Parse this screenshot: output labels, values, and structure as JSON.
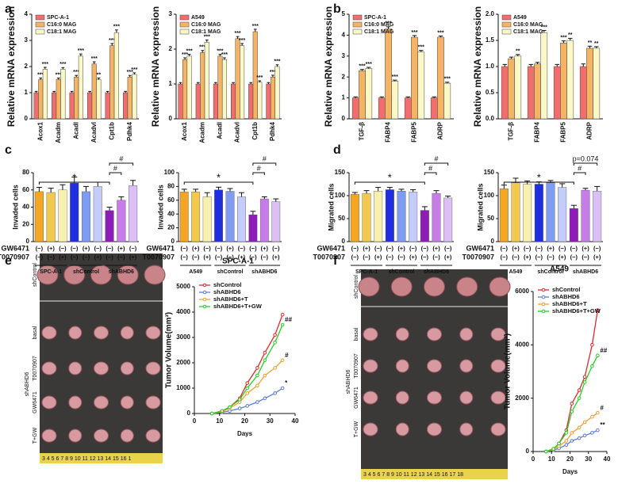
{
  "panels": [
    "a",
    "b",
    "c",
    "d",
    "e",
    "f"
  ],
  "photos": [
    {
      "labels": [
        "shControl",
        "shABHD6",
        "basal",
        "T0070907",
        "GW6471",
        "T+GW"
      ],
      "ruler": "3 4 5 6 7 8 9 10 11 12 13 14 15 16 1"
    },
    {
      "labels": [
        "shControl",
        "shABHD6",
        "basal",
        "T0070907",
        "GW6471",
        "T+GW"
      ],
      "ruler": "3 4 5 6 7 8 9 10 11 12 13 14 15 16 17 18"
    }
  ],
  "chart_data": [
    {
      "type": "bar",
      "ylabel": "Relative mRNA expression",
      "categories": [
        "Acox1",
        "Acadm",
        "Acadl",
        "Acadvl",
        "Cpt1b",
        "Pdhk4"
      ],
      "ylim": [
        0,
        4
      ],
      "yticks": [
        0,
        1,
        2,
        3,
        4
      ],
      "series": [
        {
          "name": "SPC-A-1",
          "color": "#f26d6d",
          "values": [
            1,
            1,
            1,
            1,
            1,
            1
          ],
          "errors": [
            0.05,
            0.05,
            0.05,
            0.05,
            0.05,
            0.05
          ]
        },
        {
          "name": "C16:0 MAG",
          "color": "#f5b366",
          "values": [
            1.5,
            1.5,
            1.6,
            2.1,
            2.8,
            1.6
          ],
          "errors": [
            0.06,
            0.06,
            0.06,
            0.08,
            0.08,
            0.06
          ],
          "labels": [
            "***",
            "***",
            "***",
            "***",
            "***",
            "***"
          ]
        },
        {
          "name": "C18:1 MAG",
          "color": "#fbf8c8",
          "values": [
            1.9,
            1.9,
            2.4,
            1.5,
            3.3,
            1.7
          ],
          "errors": [
            0.07,
            0.06,
            0.08,
            0.06,
            0.1,
            0.06
          ],
          "labels": [
            "***",
            "***",
            "***",
            "**",
            "***",
            "***"
          ]
        }
      ]
    },
    {
      "type": "bar",
      "ylabel": "Relative mRNA expression",
      "categories": [
        "Acox1",
        "Acadm",
        "Acadl",
        "Acadvl",
        "Cpt1b",
        "Pdhk4"
      ],
      "ylim": [
        0,
        3
      ],
      "yticks": [
        0,
        1,
        2,
        3
      ],
      "series": [
        {
          "name": "A549",
          "color": "#f26d6d",
          "values": [
            1,
            1,
            1,
            1,
            1,
            1
          ],
          "errors": [
            0.04,
            0.04,
            0.04,
            0.04,
            0.04,
            0.04
          ]
        },
        {
          "name": "C16:0 MAG",
          "color": "#f5b366",
          "values": [
            1.7,
            1.9,
            1.8,
            2.3,
            2.5,
            1.2
          ],
          "errors": [
            0.05,
            0.06,
            0.05,
            0.06,
            0.07,
            0.05
          ],
          "labels": [
            "***",
            "***",
            "***",
            "***",
            "***",
            "***"
          ]
        },
        {
          "name": "C18:1 MAG",
          "color": "#fbf8c8",
          "values": [
            1.8,
            2.2,
            1.7,
            2.1,
            1.05,
            1.5
          ],
          "errors": [
            0.05,
            0.06,
            0.05,
            0.06,
            0.04,
            0.05
          ],
          "labels": [
            "***",
            "***",
            "***",
            "***",
            "***",
            "***"
          ]
        }
      ]
    },
    {
      "type": "bar",
      "ylabel": "Relative mRNA expression",
      "categories": [
        "TGF-β",
        "FABP4",
        "FABP5",
        "ADRP"
      ],
      "ylim": [
        0,
        5
      ],
      "yticks": [
        0,
        1,
        2,
        3,
        4,
        5
      ],
      "series": [
        {
          "name": "SPC-A-1",
          "color": "#f26d6d",
          "values": [
            1,
            1,
            1,
            1
          ],
          "errors": [
            0.05,
            0.05,
            0.05,
            0.05
          ]
        },
        {
          "name": "C16:0 MAG",
          "color": "#f5b366",
          "values": [
            2.3,
            4.3,
            3.9,
            3.9
          ],
          "errors": [
            0.06,
            0.1,
            0.08,
            0.06
          ],
          "labels": [
            "***",
            "***",
            "***",
            "***"
          ]
        },
        {
          "name": "C18:1 MAG",
          "color": "#fbf8c8",
          "values": [
            2.4,
            1.8,
            3.2,
            1.7
          ],
          "errors": [
            0.06,
            0.05,
            0.07,
            0.05
          ],
          "labels": [
            "***",
            "***",
            "***",
            "***"
          ]
        }
      ]
    },
    {
      "type": "bar",
      "ylabel": "Relative mRNA expression",
      "categories": [
        "TGF-β",
        "FABP4",
        "FABP5",
        "ADRP"
      ],
      "ylim": [
        0,
        2
      ],
      "yticks": [
        {
          "value": 0,
          "label": "0.0"
        },
        {
          "value": 0.5,
          "label": "0.5"
        },
        {
          "value": 1,
          "label": "1.0"
        },
        {
          "value": 1.5,
          "label": "1.5"
        },
        {
          "value": 2,
          "label": "2.0"
        }
      ],
      "series": [
        {
          "name": "A549",
          "color": "#f26d6d",
          "values": [
            1,
            1,
            1,
            1
          ],
          "errors": [
            0.04,
            0.04,
            0.04,
            0.05
          ]
        },
        {
          "name": "C16:0 MAG",
          "color": "#f5b366",
          "values": [
            1.15,
            1.05,
            1.45,
            1.35
          ],
          "errors": [
            0.03,
            0.03,
            0.04,
            0.04
          ],
          "labels": [
            null,
            null,
            "***",
            "**"
          ]
        },
        {
          "name": "C18:1 MAG",
          "color": "#fbf8c8",
          "values": [
            1.2,
            1.65,
            1.5,
            1.35
          ],
          "errors": [
            0.03,
            0.04,
            0.04,
            0.03
          ],
          "labels": [
            "**",
            "***",
            "**",
            "**"
          ]
        }
      ]
    },
    {
      "type": "bar",
      "ylabel": "Invaded cells",
      "ylim": [
        0,
        80
      ],
      "yticks": [
        0,
        20,
        40,
        60,
        80
      ],
      "values": [
        58,
        57,
        60,
        68,
        58,
        64,
        36,
        48,
        65
      ],
      "errors": [
        5,
        5,
        6,
        7,
        6,
        5,
        4,
        4,
        6
      ],
      "colors": [
        "#f5a623",
        "#f2c94c",
        "#f8f0b0",
        "#1f2fe0",
        "#7f9cf5",
        "#c4cdfa",
        "#8e1cb8",
        "#c77ce8",
        "#dcc0f5"
      ],
      "rows": [
        {
          "name": "GW6471",
          "values": [
            "(−)",
            "(+)",
            "(−)",
            "(−)",
            "(+)",
            "(−)",
            "(−)",
            "(+)",
            "(−)"
          ]
        },
        {
          "name": "T0070907",
          "values": [
            "(−)",
            "(−)",
            "(+)",
            "(−)",
            "(−)",
            "(+)",
            "(−)",
            "(−)",
            "(+)"
          ]
        }
      ],
      "groups": [
        "SPC-A-1",
        "shControl",
        "shABHD6"
      ],
      "brackets": [
        "*",
        "#",
        "#"
      ]
    },
    {
      "type": "bar",
      "ylabel": "Invaded cells",
      "ylim": [
        0,
        100
      ],
      "yticks": [
        0,
        20,
        40,
        60,
        80,
        100
      ],
      "values": [
        72,
        72,
        65,
        75,
        73,
        65,
        39,
        62,
        58
      ],
      "errors": [
        4,
        4,
        6,
        4,
        4,
        6,
        5,
        3,
        4
      ],
      "colors": [
        "#f5a623",
        "#f2c94c",
        "#f8f0b0",
        "#1f2fe0",
        "#7f9cf5",
        "#c4cdfa",
        "#8e1cb8",
        "#c77ce8",
        "#dcc0f5"
      ],
      "rows": [
        {
          "name": "GW6471",
          "values": [
            "(−)",
            "(+)",
            "(−)",
            "(−)",
            "(+)",
            "(−)",
            "(−)",
            "(+)",
            "(−)"
          ]
        },
        {
          "name": "T0070907",
          "values": [
            "(−)",
            "(−)",
            "(+)",
            "(−)",
            "(−)",
            "(+)",
            "(−)",
            "(−)",
            "(+)"
          ]
        }
      ],
      "groups": [
        "A549",
        "shControl",
        "shABHD6"
      ],
      "brackets": [
        "*",
        "#",
        "#"
      ]
    },
    {
      "type": "bar",
      "ylabel": "Migrated cells",
      "ylim": [
        0,
        150
      ],
      "yticks": [
        0,
        50,
        100,
        150
      ],
      "values": [
        103,
        105,
        110,
        113,
        110,
        108,
        68,
        105,
        95
      ],
      "errors": [
        4,
        6,
        8,
        5,
        4,
        5,
        8,
        6,
        4
      ],
      "colors": [
        "#f5a623",
        "#f2c94c",
        "#f8f0b0",
        "#1f2fe0",
        "#7f9cf5",
        "#c4cdfa",
        "#8e1cb8",
        "#c77ce8",
        "#dcc0f5"
      ],
      "rows": [
        {
          "name": "GW6471",
          "values": [
            "(−)",
            "(+)",
            "(−)",
            "(−)",
            "(+)",
            "(−)",
            "(−)",
            "(+)",
            "(−)"
          ]
        },
        {
          "name": "T0070907",
          "values": [
            "(−)",
            "(−)",
            "(+)",
            "(−)",
            "(−)",
            "(+)",
            "(−)",
            "(−)",
            "(+)"
          ]
        }
      ],
      "groups": [
        "SPC-A-1",
        "shControl",
        "shABHD6"
      ],
      "brackets": [
        "*",
        "#",
        "#"
      ]
    },
    {
      "type": "bar",
      "ylabel": "Migrated cells",
      "ylim": [
        0,
        150
      ],
      "yticks": [
        0,
        50,
        100,
        150
      ],
      "values": [
        115,
        128,
        125,
        125,
        128,
        118,
        72,
        112,
        110
      ],
      "errors": [
        8,
        10,
        7,
        5,
        5,
        8,
        7,
        4,
        10
      ],
      "colors": [
        "#f5a623",
        "#f2c94c",
        "#f8f0b0",
        "#1f2fe0",
        "#7f9cf5",
        "#c4cdfa",
        "#8e1cb8",
        "#c77ce8",
        "#dcc0f5"
      ],
      "rows": [
        {
          "name": "GW6471",
          "values": [
            "(−)",
            "(+)",
            "(−)",
            "(−)",
            "(+)",
            "(−)",
            "(−)",
            "(+)",
            "(−)"
          ]
        },
        {
          "name": "T0070907",
          "values": [
            "(−)",
            "(−)",
            "(+)",
            "(−)",
            "(−)",
            "(+)",
            "(−)",
            "(−)",
            "(+)"
          ]
        }
      ],
      "groups": [
        "A549",
        "shControl",
        "shABHD6"
      ],
      "brackets": [
        "*",
        "#",
        "p=0.074"
      ]
    },
    {
      "type": "line",
      "title": "SPC-A-1",
      "xlabel": "Days",
      "ylabel": "Tumor Volume(mm³)",
      "xlim": [
        0,
        40
      ],
      "xticks": [
        0,
        10,
        20,
        30,
        40
      ],
      "ylim": [
        0,
        5000
      ],
      "yticks": [
        0,
        1000,
        2000,
        3000,
        4000,
        5000
      ],
      "x": [
        7,
        11,
        14,
        18,
        21,
        25,
        28,
        32,
        35
      ],
      "series": [
        {
          "name": "shControl",
          "color": "#e8262a",
          "values": [
            0,
            100,
            250,
            600,
            1200,
            1800,
            2400,
            3100,
            3900
          ]
        },
        {
          "name": "shABHD6",
          "color": "#5b7be0",
          "values": [
            0,
            50,
            100,
            200,
            300,
            450,
            600,
            800,
            1000
          ],
          "note": "*"
        },
        {
          "name": "shABHD6+T",
          "color": "#f0a030",
          "values": [
            0,
            80,
            200,
            450,
            800,
            1100,
            1500,
            1800,
            2100
          ],
          "note": "#"
        },
        {
          "name": "shABHD6+T+GW",
          "color": "#22d022",
          "values": [
            0,
            100,
            250,
            550,
            1000,
            1500,
            2100,
            2800,
            3500
          ],
          "note": "##"
        }
      ]
    },
    {
      "type": "line",
      "title": "A549",
      "xlabel": "Days",
      "ylabel": "Tumor Volume(mm³)",
      "xlim": [
        0,
        40
      ],
      "xticks": [
        0,
        10,
        20,
        30,
        40
      ],
      "ylim": [
        0,
        6000
      ],
      "yticks": [
        0,
        2000,
        4000,
        6000
      ],
      "x": [
        7,
        11,
        14,
        18,
        21,
        25,
        28,
        32,
        35
      ],
      "series": [
        {
          "name": "shControl",
          "color": "#e8262a",
          "values": [
            0,
            100,
            300,
            800,
            1800,
            2300,
            2800,
            4000,
            5300
          ]
        },
        {
          "name": "shABHD6",
          "color": "#5b7be0",
          "values": [
            0,
            50,
            120,
            250,
            400,
            500,
            600,
            700,
            800
          ],
          "note": "**"
        },
        {
          "name": "shABHD6+T",
          "color": "#f0a030",
          "values": [
            0,
            80,
            200,
            400,
            700,
            900,
            1100,
            1300,
            1450
          ],
          "note": "#"
        },
        {
          "name": "shABHD6+T+GW",
          "color": "#22d022",
          "values": [
            0,
            100,
            300,
            700,
            1500,
            2000,
            2600,
            3200,
            3600
          ],
          "note": "##"
        }
      ]
    }
  ]
}
